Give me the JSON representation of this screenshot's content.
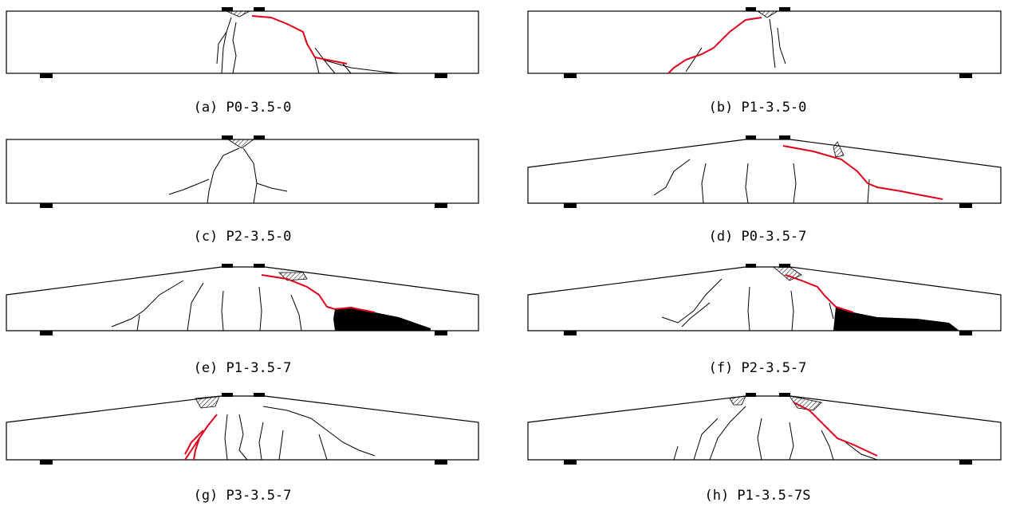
{
  "panels": [
    {
      "caption": "(a) P0-3.5-0"
    },
    {
      "caption": "(b) P1-3.5-0"
    },
    {
      "caption": "(c) P2-3.5-0"
    },
    {
      "caption": "(d) P0-3.5-7"
    },
    {
      "caption": "(e) P1-3.5-7"
    },
    {
      "caption": "(f) P2-3.5-7"
    },
    {
      "caption": "(g) P3-3.5-7"
    },
    {
      "caption": "(h) P1-3.5-7S"
    }
  ]
}
